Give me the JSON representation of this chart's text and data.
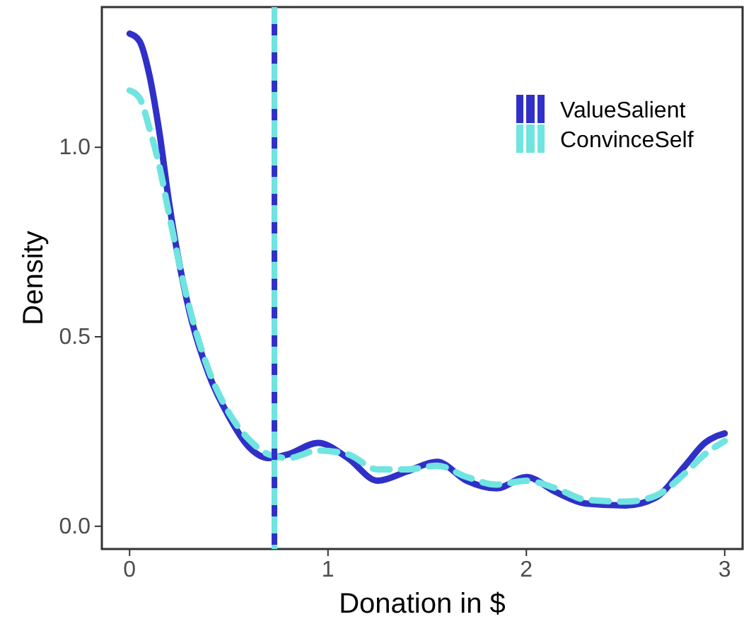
{
  "chart_data": {
    "type": "line",
    "xlabel": "Donation in $",
    "ylabel": "Density",
    "xlim": [
      -0.14,
      3.09
    ],
    "ylim": [
      -0.06,
      1.37
    ],
    "xticks": [
      0,
      1,
      2,
      3
    ],
    "yticks": [
      {
        "value": 0,
        "label": "0.0"
      },
      {
        "value": 0.5,
        "label": "0.5"
      },
      {
        "value": 1,
        "label": "1.0"
      }
    ],
    "grid": false,
    "legend": "top right",
    "x": [
      0,
      0.05,
      0.1,
      0.15,
      0.2,
      0.3,
      0.4,
      0.5,
      0.6,
      0.7,
      0.8,
      0.95,
      1.1,
      1.25,
      1.4,
      1.55,
      1.7,
      1.85,
      2.0,
      2.15,
      2.3,
      2.5,
      2.65,
      2.8,
      2.9,
      3.0
    ],
    "series": [
      {
        "name": "ValueSalient",
        "color": "#3030c8",
        "line_style": "solid",
        "values": [
          1.3,
          1.28,
          1.19,
          1.04,
          0.85,
          0.57,
          0.4,
          0.29,
          0.21,
          0.18,
          0.19,
          0.22,
          0.18,
          0.12,
          0.145,
          0.17,
          0.12,
          0.1,
          0.13,
          0.09,
          0.06,
          0.055,
          0.075,
          0.16,
          0.22,
          0.245
        ]
      },
      {
        "name": "ConvinceSelf",
        "color": "#70e4e0",
        "line_style": "dashed",
        "values": [
          1.15,
          1.13,
          1.05,
          0.95,
          0.82,
          0.58,
          0.41,
          0.3,
          0.23,
          0.19,
          0.18,
          0.2,
          0.19,
          0.15,
          0.15,
          0.16,
          0.13,
          0.11,
          0.12,
          0.1,
          0.07,
          0.065,
          0.08,
          0.14,
          0.19,
          0.225
        ]
      }
    ],
    "ref_lines": [
      {
        "axis": "x",
        "value": 0.73,
        "color": "#3030c8",
        "line_style": "solid"
      },
      {
        "axis": "x",
        "value": 0.73,
        "color": "#70e4e0",
        "line_style": "dashed"
      }
    ]
  }
}
